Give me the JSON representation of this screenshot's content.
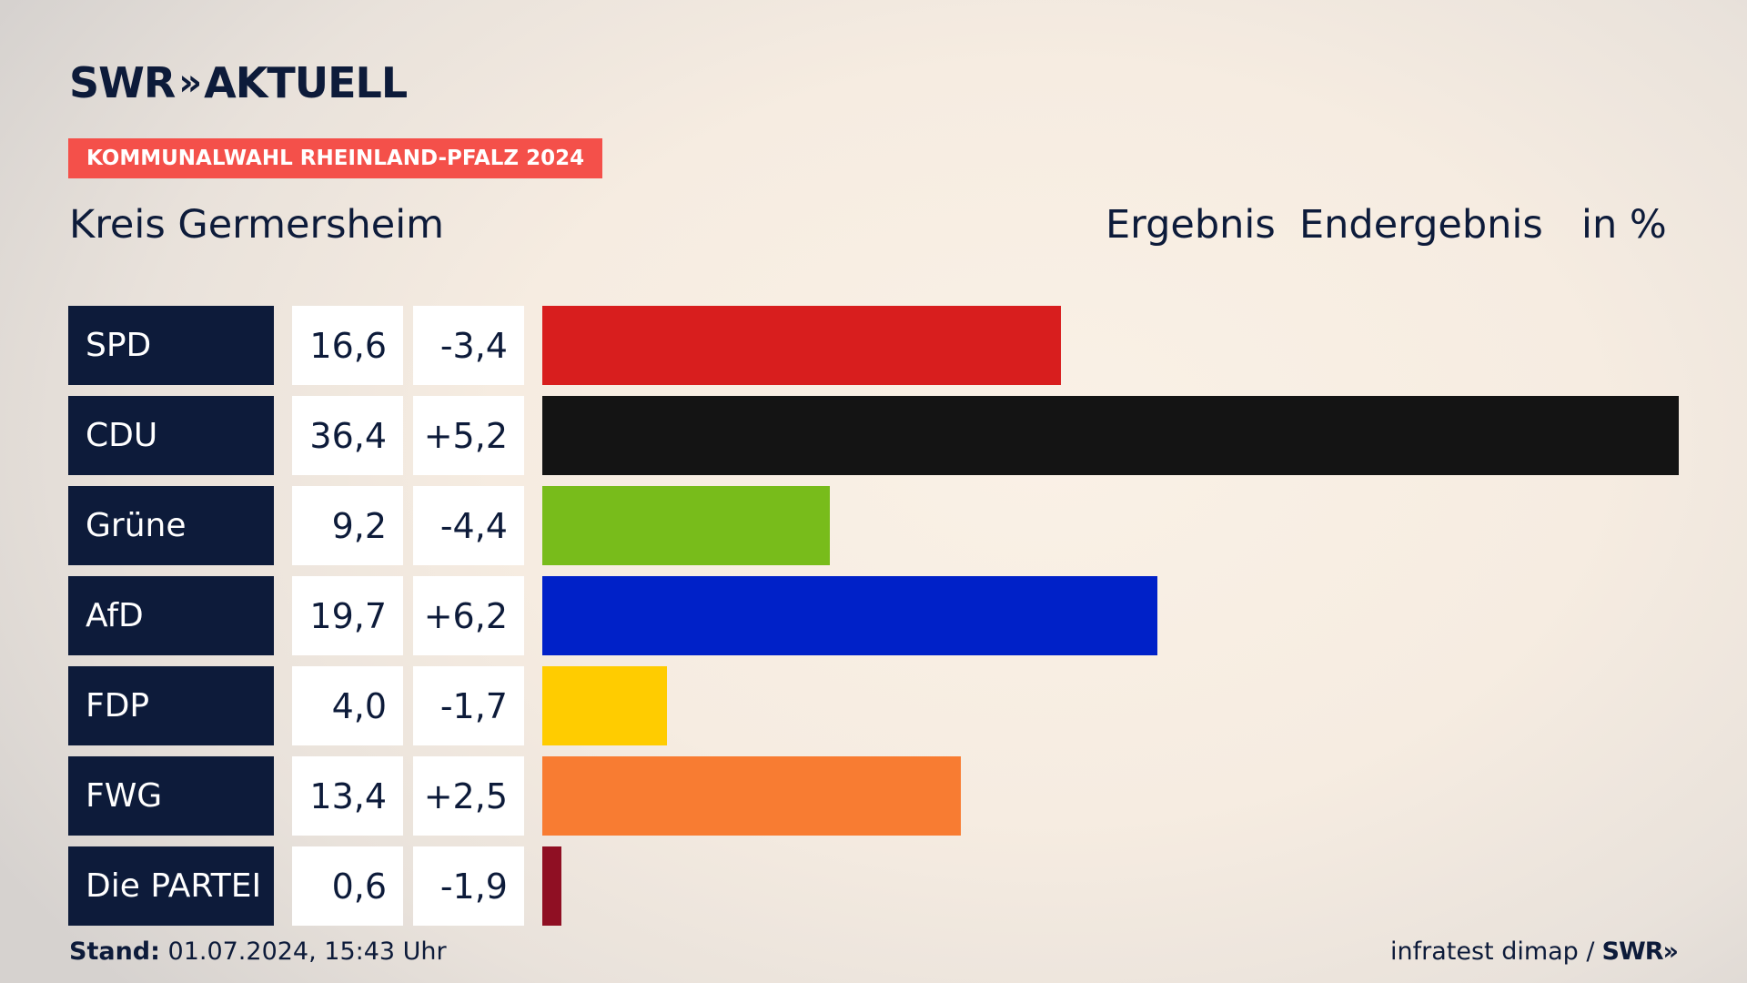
{
  "brand": {
    "name": "SWR",
    "chevrons": "»",
    "product": "AKTUELL"
  },
  "tag": "KOMMUNALWAHL RHEINLAND-PFALZ 2024",
  "header": {
    "region": "Kreis Germersheim",
    "ergebnis": "Ergebnis",
    "endergebnis": "Endergebnis",
    "unit": "in %"
  },
  "chart_data": {
    "type": "bar",
    "orientation": "horizontal",
    "title": "Kreis Germersheim",
    "unit": "in %",
    "categories": [
      "SPD",
      "CDU",
      "Grüne",
      "AfD",
      "FDP",
      "FWG",
      "Die PARTEI"
    ],
    "values": [
      16.6,
      36.4,
      9.2,
      19.7,
      4.0,
      13.4,
      0.6
    ],
    "value_labels": [
      "16,6",
      "36,4",
      "9,2",
      "19,7",
      "4,0",
      "13,4",
      "0,6"
    ],
    "differences": [
      "-3,4",
      "+5,2",
      "-4,4",
      "+6,2",
      "-1,7",
      "+2,5",
      "-1,9"
    ],
    "colors": [
      "#d81e1e",
      "#141414",
      "#78bc1b",
      "#0021c8",
      "#ffcc00",
      "#f87c32",
      "#8f0f23"
    ],
    "xlim": [
      0,
      36.4
    ],
    "grid": false,
    "legend": "none"
  },
  "footer": {
    "stand_label": "Stand:",
    "stand_value": "01.07.2024, 15:43 Uhr",
    "source": "infratest dimap /",
    "source_brand": "SWR",
    "source_chevrons": "»"
  }
}
